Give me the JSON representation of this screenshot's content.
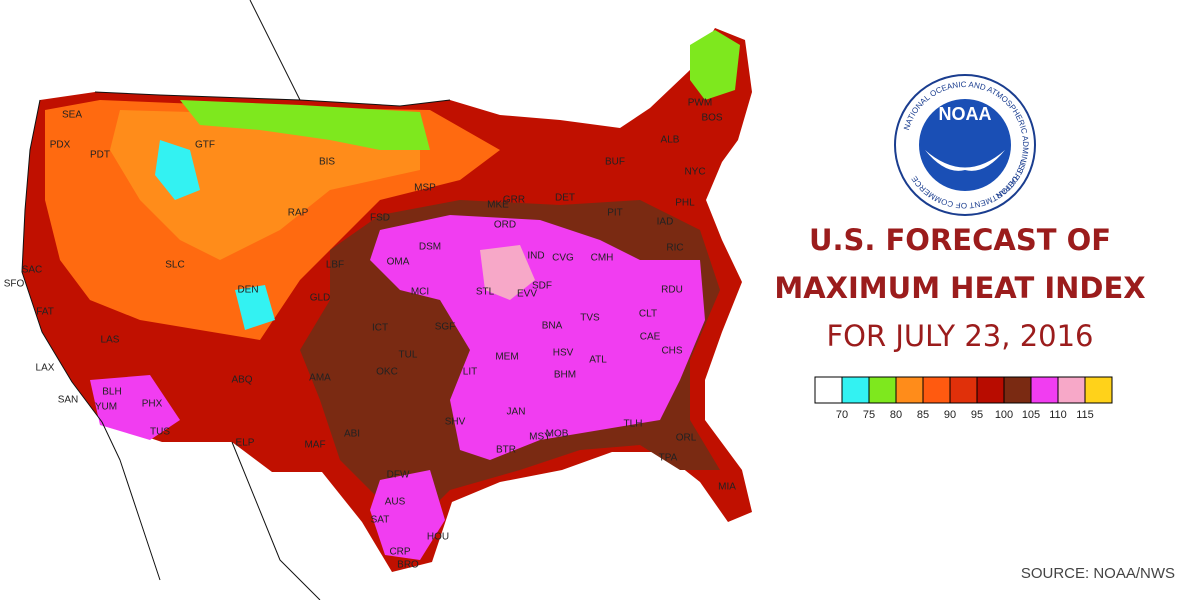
{
  "title": {
    "lines": [
      "U.S. FORECAST OF",
      "MAXIMUM HEAT INDEX",
      "FOR JULY 23, 2016"
    ]
  },
  "logo": {
    "name": "NOAA",
    "agency": "NATIONAL OCEANIC AND ATMOSPHERIC ADMINISTRATION",
    "department": "U.S. DEPARTMENT OF COMMERCE"
  },
  "legend": {
    "colors": [
      "#ffffff",
      "#33f2f2",
      "#7ee81e",
      "#ff8c1a",
      "#ff5a10",
      "#e0300a",
      "#b80c00",
      "#7a2a12",
      "#f13df1",
      "#f7a8c8",
      "#ffd21a"
    ],
    "labels": [
      70,
      75,
      80,
      85,
      90,
      95,
      100,
      105,
      110,
      115
    ]
  },
  "source": "SOURCE: NOAA/NWS",
  "stations": [
    "SEA",
    "PDX",
    "PDT",
    "GTF",
    "BIS",
    "MSP",
    "SAC",
    "SFO",
    "FAT",
    "SLC",
    "DEN",
    "RAP",
    "LBF",
    "FSD",
    "DSM",
    "OMA",
    "MCI",
    "GLD",
    "ICT",
    "TUL",
    "OKC",
    "ABQ",
    "AMA",
    "PHX",
    "YUM",
    "TUS",
    "ELP",
    "MAF",
    "ABI",
    "DFW",
    "SHV",
    "AUS",
    "SAT",
    "HOU",
    "CRP",
    "BRO",
    "STL",
    "MEM",
    "LIT",
    "JAN",
    "BHM",
    "ATL",
    "MSY",
    "TLH",
    "ORL",
    "MIA",
    "TPA",
    "CHS",
    "CAE",
    "CLT",
    "RDU",
    "RIC",
    "PHL",
    "NYC",
    "BOS",
    "ALB",
    "PWM",
    "BUF",
    "DET",
    "GRR",
    "MKE",
    "ORD",
    "IND",
    "SDF",
    "BNA",
    "LAS",
    "LAX",
    "SAN",
    "BLH",
    "SGF",
    "EVV",
    "TVS",
    "HSV",
    "MOB",
    "BTR",
    "CVG",
    "CMH",
    "PIT",
    "IAD"
  ]
}
